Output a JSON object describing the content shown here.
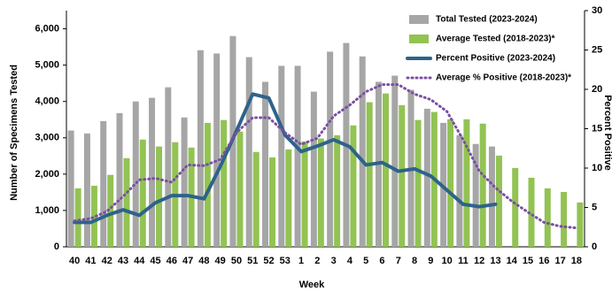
{
  "chart_data": {
    "type": "bar_line",
    "x_label": "Week",
    "y_label": "Number of Specimens Tested",
    "y2_label": "Percent Positive",
    "categories": [
      "40",
      "41",
      "42",
      "43",
      "44",
      "45",
      "46",
      "47",
      "48",
      "49",
      "50",
      "51",
      "52",
      "53",
      "1",
      "2",
      "3",
      "4",
      "5",
      "6",
      "7",
      "8",
      "9",
      "10",
      "11",
      "12",
      "13",
      "14",
      "15",
      "16",
      "17",
      "18"
    ],
    "ylim": [
      0,
      6500
    ],
    "yticks": [
      0,
      {
        "value": 1000,
        "label": "1,000"
      },
      {
        "value": 2000,
        "label": "2,000"
      },
      {
        "value": 3000,
        "label": "3,000"
      },
      {
        "value": 4000,
        "label": "4,000"
      },
      {
        "value": 5000,
        "label": "5,000"
      },
      {
        "value": 6000,
        "label": "6,000"
      }
    ],
    "y2lim": [
      0,
      30
    ],
    "y2ticks": [
      0,
      5,
      10,
      15,
      20,
      25,
      30
    ],
    "series": [
      {
        "name": "Total Tested (2023-2024)",
        "kind": "bar",
        "color": "#a6a6a6",
        "values": [
          3200,
          3120,
          3460,
          3680,
          4000,
          4100,
          4390,
          3560,
          5410,
          5320,
          5800,
          5220,
          4540,
          4980,
          4980,
          4270,
          5370,
          5610,
          5240,
          4540,
          4710,
          4320,
          3800,
          3410,
          3070,
          2830,
          2760,
          null,
          null,
          null,
          null,
          null
        ]
      },
      {
        "name": "Average Tested (2018-2023)*",
        "kind": "bar",
        "color": "#92c353",
        "values": [
          1610,
          1680,
          1980,
          2440,
          2950,
          2760,
          2880,
          2730,
          3410,
          3490,
          3170,
          2610,
          2460,
          2680,
          2900,
          2980,
          3070,
          3340,
          3980,
          4220,
          3900,
          3490,
          3710,
          3510,
          3510,
          3390,
          2510,
          2170,
          1900,
          1610,
          1510,
          1220
        ]
      },
      {
        "name": "Percent Positive (2023-2024)",
        "kind": "line",
        "axis": "y2",
        "color": "#2e6389",
        "values": [
          3.1,
          3.1,
          4.0,
          4.7,
          4.0,
          5.6,
          6.5,
          6.5,
          6.1,
          10.2,
          14.7,
          19.4,
          18.9,
          14.2,
          12.1,
          12.8,
          13.6,
          12.7,
          10.4,
          10.7,
          9.6,
          9.9,
          9.0,
          7.2,
          5.4,
          5.1,
          5.4,
          null,
          null,
          null,
          null,
          null
        ]
      },
      {
        "name": "Average % Positive (2018-2023)*",
        "kind": "dotted",
        "axis": "y2",
        "color": "#7a4fa3",
        "values": [
          3.3,
          3.6,
          4.5,
          6.4,
          8.5,
          8.7,
          8.2,
          10.4,
          10.3,
          11.1,
          14.5,
          16.4,
          16.4,
          14.5,
          13.0,
          13.8,
          16.6,
          18.0,
          19.7,
          20.6,
          20.6,
          19.4,
          18.7,
          17.2,
          13.6,
          9.6,
          7.5,
          5.8,
          4.4,
          3.1,
          2.6,
          2.4
        ]
      }
    ]
  }
}
